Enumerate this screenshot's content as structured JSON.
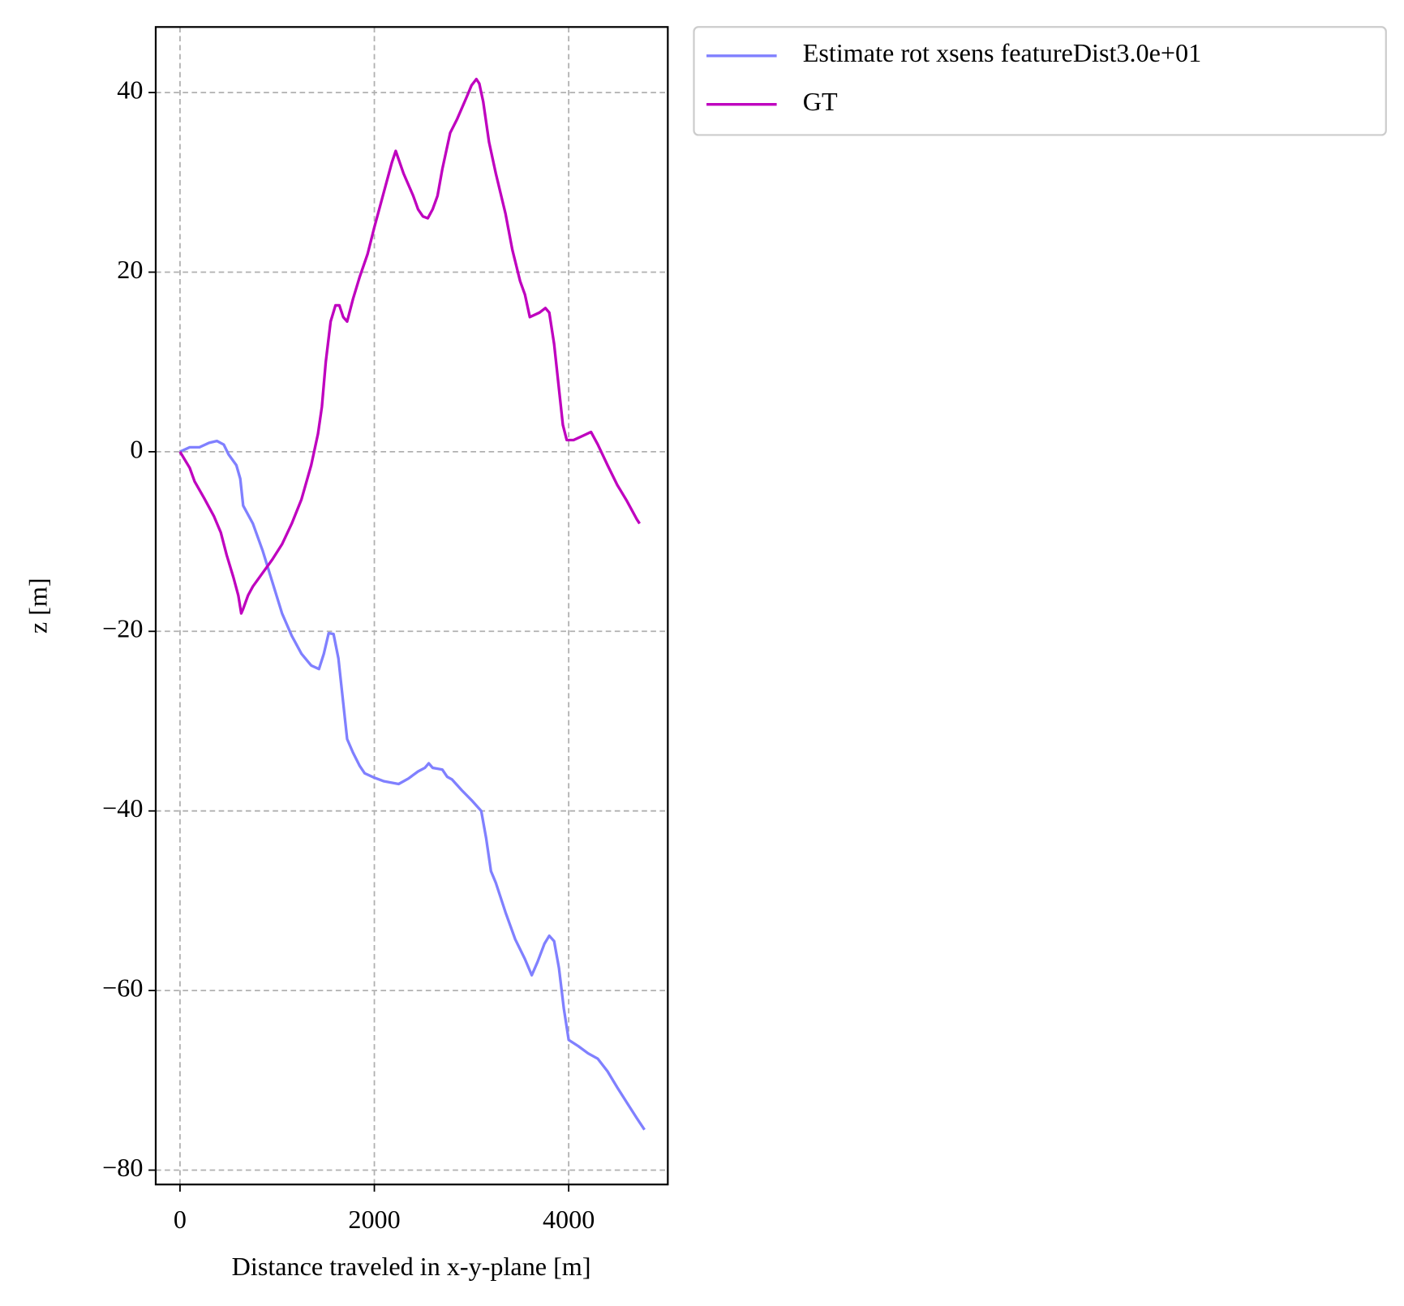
{
  "chart_data": {
    "type": "line",
    "xlabel": "Distance traveled in x-y-plane [m]",
    "ylabel": "z [m]",
    "xlim": [
      -250,
      5020
    ],
    "ylim": [
      -81.6,
      47.3
    ],
    "xticks": [
      0,
      2000,
      4000
    ],
    "yticks": [
      40,
      20,
      0,
      {
        "value": -20,
        "label": "−20"
      },
      {
        "value": -40,
        "label": "−40"
      },
      {
        "value": -60,
        "label": "−60"
      },
      {
        "value": -80,
        "label": "−80"
      }
    ],
    "grid": true,
    "series": [
      {
        "name": "Estimate rot xsens featureDist3.0e+01",
        "color": "#8080ff",
        "x": [
          0,
          100,
          200,
          300,
          380,
          450,
          500,
          580,
          620,
          650,
          750,
          850,
          950,
          1050,
          1150,
          1250,
          1350,
          1430,
          1480,
          1530,
          1580,
          1630,
          1680,
          1720,
          1780,
          1850,
          1900,
          2000,
          2100,
          2250,
          2350,
          2450,
          2520,
          2560,
          2600,
          2650,
          2700,
          2750,
          2800,
          2900,
          3000,
          3100,
          3150,
          3200,
          3250,
          3350,
          3450,
          3550,
          3620,
          3680,
          3750,
          3800,
          3850,
          3900,
          3950,
          4000,
          4100,
          4200,
          4300,
          4400,
          4500,
          4600,
          4700,
          4780
        ],
        "values": [
          0,
          0.5,
          0.5,
          1,
          1.2,
          0.8,
          -0.3,
          -1.5,
          -3,
          -6,
          -8,
          -11,
          -14.5,
          -18,
          -20.5,
          -22.5,
          -23.8,
          -24.2,
          -22.5,
          -20.2,
          -20.3,
          -23,
          -28,
          -32,
          -33.5,
          -35,
          -35.8,
          -36.3,
          -36.7,
          -37,
          -36.4,
          -35.6,
          -35.2,
          -34.7,
          -35.2,
          -35.3,
          -35.4,
          -36.2,
          -36.5,
          -37.7,
          -38.8,
          -40,
          -43,
          -46.7,
          -48,
          -51.3,
          -54.3,
          -56.5,
          -58.3,
          -56.8,
          -54.8,
          -53.9,
          -54.5,
          -57.5,
          -62,
          -65.5,
          -66.2,
          -67,
          -67.6,
          -69,
          -70.8,
          -72.5,
          -74.2,
          -75.5
        ]
      },
      {
        "name": "GT",
        "color": "#bf00bf",
        "x": [
          0,
          100,
          150,
          250,
          350,
          420,
          480,
          550,
          600,
          630,
          650,
          700,
          750,
          850,
          950,
          1050,
          1150,
          1250,
          1350,
          1420,
          1460,
          1500,
          1550,
          1600,
          1640,
          1680,
          1720,
          1780,
          1850,
          1930,
          2000,
          2100,
          2180,
          2220,
          2300,
          2400,
          2450,
          2500,
          2550,
          2600,
          2650,
          2700,
          2780,
          2850,
          2950,
          3000,
          3050,
          3080,
          3120,
          3180,
          3250,
          3350,
          3420,
          3500,
          3550,
          3600,
          3700,
          3760,
          3800,
          3850,
          3900,
          3940,
          3980,
          4050,
          4150,
          4230,
          4300,
          4400,
          4500,
          4600,
          4700,
          4730
        ],
        "values": [
          0,
          -1.8,
          -3.3,
          -5.2,
          -7.2,
          -9,
          -11.5,
          -14,
          -16,
          -18,
          -17.5,
          -16,
          -15,
          -13.5,
          -12,
          -10.3,
          -8,
          -5.3,
          -1.5,
          2,
          5,
          10,
          14.5,
          16.3,
          16.3,
          15,
          14.5,
          17,
          19.5,
          22,
          25,
          29,
          32.2,
          33.5,
          31,
          28.5,
          27,
          26.2,
          26,
          27,
          28.5,
          31.5,
          35.5,
          37,
          39.5,
          40.8,
          41.5,
          41,
          39,
          34.5,
          31,
          26.5,
          22.5,
          19,
          17.5,
          15,
          15.5,
          16,
          15.5,
          12,
          7,
          3,
          1.3,
          1.3,
          1.8,
          2.2,
          0.8,
          -1.5,
          -3.7,
          -5.5,
          -7.5,
          -8
        ]
      }
    ]
  }
}
